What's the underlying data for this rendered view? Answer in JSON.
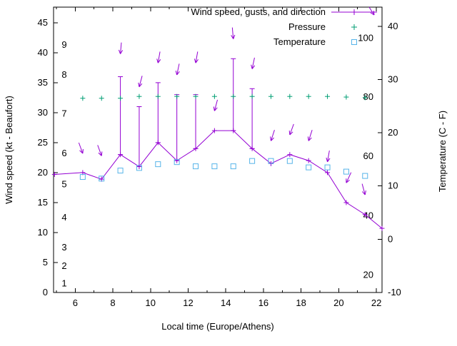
{
  "chart_data": {
    "type": "line",
    "title": "",
    "xlabel": "Local time (Europe/Athens)",
    "ylabel_left": "Wind speed (kt - Beaufort)",
    "ylabel_right": "Temperature (C - F)",
    "x_range": [
      4.85,
      22.3
    ],
    "x_major_ticks": [
      6,
      8,
      10,
      12,
      14,
      16,
      18,
      20,
      22
    ],
    "x_minor_ticks": [
      5,
      7,
      9,
      11,
      13,
      15,
      17,
      19,
      21,
      22
    ],
    "y_left": {
      "range": [
        0,
        47.6
      ],
      "ticks": [
        0,
        5,
        10,
        15,
        20,
        25,
        30,
        35,
        40,
        45
      ]
    },
    "y_right": {
      "range": [
        -10,
        43.6
      ],
      "ticks": [
        -10,
        0,
        10,
        20,
        30,
        40
      ]
    },
    "grid": false,
    "legend_position": "top-right-inside",
    "beaufort_scale_labels": [
      {
        "label": "1",
        "kt": 1.5
      },
      {
        "label": "2",
        "kt": 4.4
      },
      {
        "label": "3",
        "kt": 7.5
      },
      {
        "label": "4",
        "kt": 12.5
      },
      {
        "label": "5",
        "kt": 18.0
      },
      {
        "label": "6",
        "kt": 23.2
      },
      {
        "label": "7",
        "kt": 29.8
      },
      {
        "label": "8",
        "kt": 36.3
      },
      {
        "label": "9",
        "kt": 41.3
      }
    ],
    "fahrenheit_scale_labels": [
      {
        "label": "20",
        "c": -6.7
      },
      {
        "label": "40",
        "c": 4.4
      },
      {
        "label": "60",
        "c": 15.6
      },
      {
        "label": "80",
        "c": 26.7
      },
      {
        "label": "100",
        "c": 37.8
      }
    ],
    "legend": [
      {
        "label": "Wind speed, gusts, and direction",
        "series": "wind",
        "marker": "errorbar-line-with-arrow"
      },
      {
        "label": "Pressure",
        "series": "pressure",
        "marker": "plus"
      },
      {
        "label": "Temperature",
        "series": "temperature",
        "marker": "open-square"
      }
    ],
    "colors": {
      "wind": "#9400D3",
      "pressure": "#009E73",
      "temperature": "#56B4E9",
      "axis": "#000000",
      "background": "#ffffff"
    },
    "wind": {
      "x": [
        4.9,
        6.4,
        7.4,
        8.4,
        9.4,
        10.4,
        11.4,
        12.4,
        13.4,
        14.4,
        15.4,
        16.4,
        17.4,
        18.4,
        19.4,
        20.4,
        21.4,
        22.3
      ],
      "kt": [
        19.7,
        20.0,
        18.9,
        23.0,
        21.0,
        25.0,
        22.0,
        24.0,
        27.0,
        27.0,
        24.0,
        21.5,
        23.0,
        22.0,
        20.0,
        15.0,
        13.0,
        10.7
      ]
    },
    "gusts": [
      {
        "t": 8.4,
        "from": 23.0,
        "to": 36.0
      },
      {
        "t": 9.4,
        "from": 21.0,
        "to": 31.0
      },
      {
        "t": 10.4,
        "from": 25.0,
        "to": 35.0
      },
      {
        "t": 11.4,
        "from": 22.0,
        "to": 33.0
      },
      {
        "t": 12.4,
        "from": 24.0,
        "to": 33.0
      },
      {
        "t": 14.4,
        "from": 27.0,
        "to": 39.0
      },
      {
        "t": 15.4,
        "from": 24.0,
        "to": 34.0
      }
    ],
    "direction_arrows": [
      {
        "t": 6.4,
        "kt": 23.2,
        "angle": 20
      },
      {
        "t": 7.4,
        "kt": 22.8,
        "angle": 20
      },
      {
        "t": 8.4,
        "kt": 39.8,
        "angle": -5
      },
      {
        "t": 9.4,
        "kt": 34.3,
        "angle": -15
      },
      {
        "t": 10.4,
        "kt": 38.3,
        "angle": -10
      },
      {
        "t": 11.4,
        "kt": 36.3,
        "angle": -12
      },
      {
        "t": 12.4,
        "kt": 38.3,
        "angle": -10
      },
      {
        "t": 13.4,
        "kt": 30.3,
        "angle": -15
      },
      {
        "t": 14.4,
        "kt": 42.3,
        "angle": 5
      },
      {
        "t": 15.4,
        "kt": 37.3,
        "angle": -12
      },
      {
        "t": 16.4,
        "kt": 25.3,
        "angle": -18
      },
      {
        "t": 17.4,
        "kt": 26.3,
        "angle": -20
      },
      {
        "t": 18.4,
        "kt": 25.3,
        "angle": -18
      },
      {
        "t": 19.4,
        "kt": 21.8,
        "angle": -10
      },
      {
        "t": 20.4,
        "kt": 18.3,
        "angle": -25
      },
      {
        "t": 21.4,
        "kt": 16.3,
        "angle": 15
      }
    ],
    "pressure": {
      "x": [
        6.4,
        7.4,
        8.4,
        9.4,
        10.4,
        11.4,
        12.4,
        13.4,
        14.4,
        15.4,
        16.4,
        17.4,
        18.4,
        19.4,
        20.4,
        21.4
      ],
      "level_kt_axis": [
        32.4,
        32.4,
        32.4,
        32.7,
        32.7,
        32.7,
        32.7,
        32.7,
        32.7,
        32.7,
        32.7,
        32.7,
        32.7,
        32.7,
        32.6,
        32.5
      ]
    },
    "temperature": {
      "x": [
        6.4,
        7.4,
        8.4,
        9.4,
        10.4,
        11.4,
        12.4,
        13.4,
        14.4,
        15.4,
        16.4,
        17.4,
        18.4,
        19.4,
        20.4,
        21.4
      ],
      "c": [
        11.7,
        11.4,
        12.9,
        13.4,
        14.1,
        14.5,
        13.7,
        13.7,
        13.7,
        14.7,
        14.7,
        14.7,
        13.5,
        13.5,
        12.7,
        11.9
      ]
    }
  }
}
